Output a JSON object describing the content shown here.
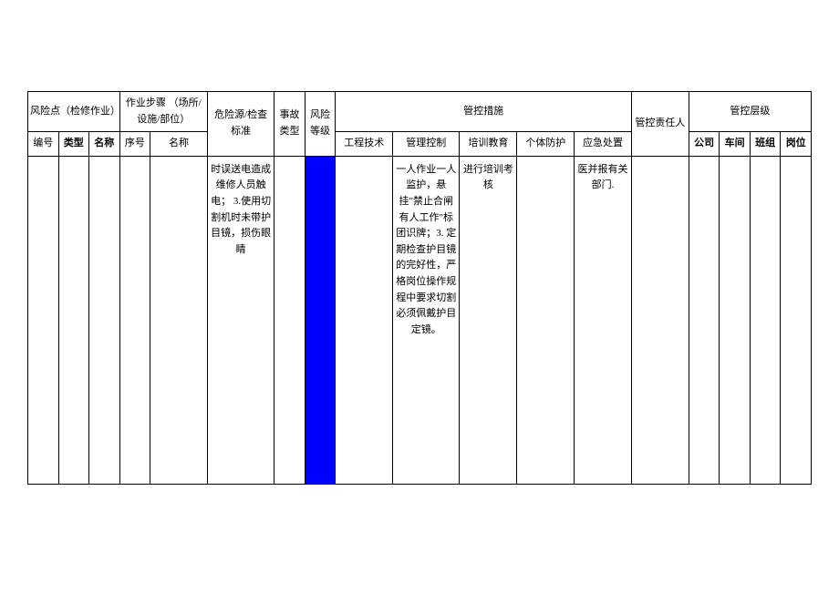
{
  "header": {
    "risk_point": "风险点（检修作业）",
    "work_step": "作业步骤\n（场所/设施/部位）",
    "hazard_std": "危险源/检查标准",
    "accident_type": "事故类型",
    "risk_level": "风险等级",
    "measures": "管控措施",
    "responsible": "管控责任人",
    "level": "管控层级",
    "sub": {
      "no": "编号",
      "type": "类型",
      "name": "名称",
      "seq": "序号",
      "step_name": "名称",
      "eng": "工程技术",
      "mgmt": "管理控制",
      "train": "培训教育",
      "ppe": "个体防护",
      "emerg": "应急处置",
      "company": "公司",
      "workshop": "车间",
      "team": "班组",
      "post": "岗位"
    }
  },
  "row": {
    "hazard": "时误送电造成维修人员触电；\n3.使用切割机时未带护目镜，损伤眼睛",
    "mgmt": "一人作业一人监护，悬挂\"禁止合闸有人工作\"标团识牌；3. 定期检查护目镜的完好性，严格岗位操作规程中要求切割必须佩戴护目定镜。",
    "train": "进行培训考核",
    "emerg": "医并报有关部门."
  },
  "colors": {
    "blue": "#0000ff",
    "border": "#000000",
    "bg": "#ffffff"
  }
}
